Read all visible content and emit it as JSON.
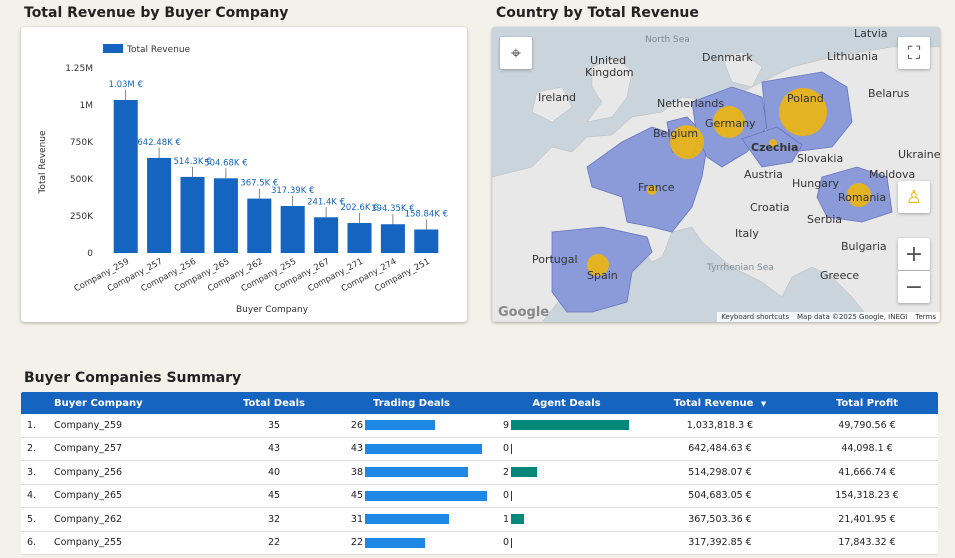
{
  "chart_section": {
    "title": "Total Revenue by Buyer Company"
  },
  "map_section": {
    "title": "Country by Total Revenue",
    "labels": {
      "latvia": "Latvia",
      "north_sea": "North Sea",
      "denmark": "Denmark",
      "lithuania": "Lithuania",
      "uk1": "United",
      "uk2": "Kingdom",
      "ireland": "Ireland",
      "netherlands": "Netherlands",
      "belarus": "Belarus",
      "poland": "Poland",
      "belgium": "Belgium",
      "germany": "Germany",
      "czechia": "Czechia",
      "ukraine": "Ukraine",
      "slovakia": "Slovakia",
      "moldova": "Moldova",
      "france": "France",
      "austria": "Austria",
      "hungary": "Hungary",
      "romania": "Romania",
      "croatia": "Croatia",
      "serbia": "Serbia",
      "italy": "Italy",
      "portugal": "Portugal",
      "bulgaria": "Bulgaria",
      "spain": "Spain",
      "tyrrhenian": "Tyrrhenian Sea",
      "greece": "Greece"
    },
    "footer": {
      "shortcuts": "Keyboard shortcuts",
      "mapdata": "Map data ©2025 Google, INEGI",
      "terms": "Terms"
    },
    "logo": "Google",
    "zoom_in": "+",
    "zoom_out": "−"
  },
  "chart_data": {
    "type": "bar",
    "legend": "Total Revenue",
    "legend_position": "top-left",
    "xlabel": "Buyer Company",
    "ylabel": "Total Revenue",
    "ylim": [
      0,
      1250000
    ],
    "yticks": [
      0,
      250000,
      500000,
      750000,
      1000000,
      1250000
    ],
    "ytick_labels": [
      "0",
      "250K",
      "500K",
      "750K",
      "1M",
      "1.25M"
    ],
    "categories": [
      "Company_259",
      "Company_257",
      "Company_256",
      "Company_265",
      "Company_262",
      "Company_255",
      "Company_267",
      "Company_271",
      "Company_274",
      "Company_251"
    ],
    "values": [
      1033818.3,
      642484.63,
      514298.07,
      504683.05,
      367503.36,
      317392.85,
      241400,
      202600,
      194350,
      158840
    ],
    "data_labels": [
      "1.03M €",
      "642.48K €",
      "514.3K €",
      "504.68K €",
      "367.5K €",
      "317.39K €",
      "241.4K €",
      "202.6K €",
      "194.35K €",
      "158.84K €"
    ],
    "color": "#1565c0"
  },
  "table": {
    "title": "Buyer Companies Summary",
    "headers": {
      "buyer": "Buyer Company",
      "total_deals": "Total Deals",
      "trading": "Trading Deals",
      "agent": "Agent Deals",
      "revenue": "Total Revenue",
      "profit": "Total Profit"
    },
    "sort_indicator": "▼",
    "max_trading": 45,
    "max_agent": 9,
    "rows": [
      {
        "idx": "1.",
        "name": "Company_259",
        "total": "35",
        "trading": 26,
        "agent": 9,
        "revenue": "1,033,818.3 €",
        "profit": "49,790.56 €"
      },
      {
        "idx": "2.",
        "name": "Company_257",
        "total": "43",
        "trading": 43,
        "agent": 0,
        "revenue": "642,484.63 €",
        "profit": "44,098.1 €"
      },
      {
        "idx": "3.",
        "name": "Company_256",
        "total": "40",
        "trading": 38,
        "agent": 2,
        "revenue": "514,298.07 €",
        "profit": "41,666.74 €"
      },
      {
        "idx": "4.",
        "name": "Company_265",
        "total": "45",
        "trading": 45,
        "agent": 0,
        "revenue": "504,683.05 €",
        "profit": "154,318.23 €"
      },
      {
        "idx": "5.",
        "name": "Company_262",
        "total": "32",
        "trading": 31,
        "agent": 1,
        "revenue": "367,503.36 €",
        "profit": "21,401.95 €"
      },
      {
        "idx": "6.",
        "name": "Company_255",
        "total": "22",
        "trading": 22,
        "agent": 0,
        "revenue": "317,392.85 €",
        "profit": "17,843.32 €"
      }
    ]
  }
}
